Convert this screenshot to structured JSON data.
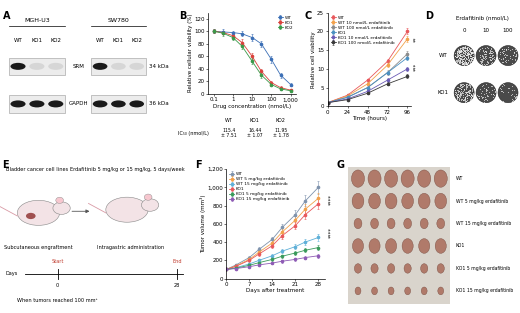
{
  "panel_labels": [
    "A",
    "B",
    "C",
    "D",
    "E",
    "F",
    "G"
  ],
  "western_blot": {
    "blots": [
      {
        "cell_line": "MGH-U3",
        "lanes": [
          "WT",
          "KO1",
          "KO2"
        ]
      },
      {
        "cell_line": "SW780",
        "lanes": [
          "WT",
          "KO1",
          "KO2"
        ]
      }
    ],
    "rows": [
      {
        "protein": "SRM",
        "size": "34 kDa",
        "band": [
          true,
          false,
          false
        ]
      },
      {
        "protein": "GAPDH",
        "size": "36 kDa",
        "band": [
          true,
          true,
          true
        ]
      }
    ]
  },
  "chart_data": [
    {
      "type": "line",
      "x": [
        0.1,
        0.3,
        1,
        3,
        10,
        30,
        100,
        300,
        1000
      ],
      "log": "x",
      "marker": "o",
      "legend": "upper right",
      "x_label": "Drug concentration (nmol/L)",
      "y_label": "Relative cellular viability (%)",
      "xlim": [
        0.05,
        2000
      ],
      "xticks": [
        0.1,
        1,
        10,
        100,
        {
          "value": 1000,
          "label": "1,000"
        }
      ],
      "ylim": [
        0,
        130
      ],
      "yticks": [
        0,
        20,
        40,
        60,
        80,
        100,
        120
      ],
      "series": [
        {
          "name": "WT",
          "color": "#3b6fb6",
          "values": [
            100,
            99,
            98,
            96,
            90,
            80,
            55,
            30,
            15
          ],
          "errors": [
            3,
            4,
            3,
            4,
            5,
            5,
            6,
            4,
            3
          ]
        },
        {
          "name": "KO1",
          "color": "#d9423c",
          "values": [
            100,
            98,
            93,
            82,
            60,
            36,
            18,
            10,
            6
          ],
          "errors": [
            3,
            3,
            4,
            5,
            5,
            4,
            3,
            2,
            2
          ]
        },
        {
          "name": "KO2",
          "color": "#3a9a4a",
          "values": [
            100,
            97,
            90,
            76,
            52,
            30,
            15,
            8,
            5
          ],
          "errors": [
            3,
            4,
            4,
            5,
            5,
            4,
            3,
            2,
            2
          ]
        }
      ]
    },
    {
      "type": "line",
      "x": [
        0,
        24,
        48,
        72,
        96
      ],
      "marker": "o",
      "legend": "upper left",
      "x_label": "Time (hours)",
      "y_label": "Relative cell viability",
      "xlim": [
        0,
        100
      ],
      "xticks": [
        0,
        24,
        48,
        72,
        96
      ],
      "ylim": [
        0,
        25
      ],
      "yticks": [
        0,
        5,
        10,
        15,
        20,
        25
      ],
      "annotations": [
        "**",
        "***"
      ],
      "series": [
        {
          "name": "WT",
          "color": "#e8585c",
          "values": [
            1,
            3,
            7,
            12,
            20
          ],
          "errors": [
            0.05,
            0.2,
            0.4,
            0.6,
            0.8
          ]
        },
        {
          "name": "WT 10 nmol/L erdafitinib",
          "color": "#f2a14b",
          "values": [
            1,
            2.8,
            6,
            11,
            18
          ],
          "errors": [
            0.05,
            0.2,
            0.4,
            0.6,
            0.8
          ]
        },
        {
          "name": "WT 100 nmol/L erdafitinib",
          "color": "#8c8c8c",
          "values": [
            1,
            2.5,
            5,
            9,
            14
          ],
          "errors": [
            0.05,
            0.2,
            0.4,
            0.6,
            0.7
          ]
        },
        {
          "name": "KO1",
          "color": "#4a90c2",
          "values": [
            1,
            2.4,
            5,
            9,
            13
          ],
          "errors": [
            0.05,
            0.2,
            0.3,
            0.5,
            0.7
          ]
        },
        {
          "name": "KO1 10 nmol/L erdafitinib",
          "color": "#6a5bb5",
          "values": [
            1,
            2,
            4,
            7,
            10
          ],
          "errors": [
            0.05,
            0.2,
            0.3,
            0.5,
            0.6
          ]
        },
        {
          "name": "KO1 100 nmol/L erdafitinib",
          "color": "#3a3a3a",
          "values": [
            1,
            1.8,
            3.5,
            6,
            8
          ],
          "errors": [
            0.05,
            0.2,
            0.3,
            0.4,
            0.5
          ]
        }
      ]
    },
    {
      "type": "line",
      "x": [
        0,
        3,
        7,
        10,
        14,
        17,
        21,
        24,
        28
      ],
      "marker": "o",
      "legend": "upper left",
      "x_label": "Days after treatment",
      "y_label": "Tumor volume (mm³)",
      "xlim": [
        0,
        30
      ],
      "xticks": [
        0,
        7,
        14,
        21,
        28
      ],
      "ylim": [
        0,
        1200
      ],
      "yticks": [
        0,
        200,
        400,
        600,
        800,
        {
          "value": 1000,
          "label": "1,000"
        },
        {
          "value": 1200,
          "label": "1,200"
        }
      ],
      "annotations": [
        "****",
        "****"
      ],
      "series": [
        {
          "name": "WT",
          "color": "#7f93ad",
          "values": [
            100,
            150,
            230,
            320,
            430,
            560,
            700,
            850,
            1000
          ],
          "errors": [
            5,
            10,
            20,
            25,
            30,
            40,
            50,
            60,
            70
          ]
        },
        {
          "name": "WT 5 mg/kg erdafitinib",
          "color": "#f2a14b",
          "values": [
            100,
            140,
            210,
            290,
            390,
            510,
            640,
            760,
            880
          ],
          "errors": [
            5,
            10,
            18,
            22,
            28,
            35,
            45,
            55,
            60
          ]
        },
        {
          "name": "WT 15 mg/kg erdafitinib",
          "color": "#5fb0d8",
          "values": [
            100,
            120,
            160,
            200,
            250,
            300,
            350,
            400,
            450
          ],
          "errors": [
            5,
            8,
            12,
            15,
            18,
            22,
            25,
            30,
            35
          ]
        },
        {
          "name": "KO1",
          "color": "#e8585c",
          "values": [
            100,
            135,
            200,
            270,
            360,
            470,
            580,
            700,
            820
          ],
          "errors": [
            5,
            10,
            16,
            20,
            25,
            35,
            40,
            50,
            60
          ]
        },
        {
          "name": "KO1 5 mg/kg erdafitinib",
          "color": "#3a9a5b",
          "values": [
            100,
            115,
            145,
            175,
            210,
            245,
            280,
            310,
            340
          ],
          "errors": [
            5,
            7,
            10,
            12,
            15,
            18,
            20,
            22,
            25
          ]
        },
        {
          "name": "KO1 15 mg/kg erdafitinib",
          "color": "#8e5bb5",
          "values": [
            100,
            110,
            130,
            150,
            170,
            190,
            210,
            230,
            250
          ],
          "errors": [
            5,
            6,
            8,
            10,
            12,
            14,
            15,
            17,
            20
          ]
        }
      ]
    }
  ],
  "ic50_table": {
    "label": "IC₅₀ (nmol/L)",
    "columns": [
      "WT",
      "KO1",
      "KO2"
    ],
    "values": [
      [
        "115.4",
        "± 7.51"
      ],
      [
        "16.44",
        "± 1.07"
      ],
      [
        "11.95",
        "± 1.78"
      ]
    ]
  },
  "colony_assay": {
    "title": "Erdafitinib (nmol/L)",
    "doses": [
      0,
      10,
      100
    ],
    "rows": [
      "WT",
      "KO1"
    ]
  },
  "schematic": {
    "cell_lines": "Bladder cancer cell lines",
    "treatment": "Erdafitinib 5 mg/kg or 15 mg/kg, 5 days/week",
    "engraftment": "Subcutaneous engraftment",
    "administration": "Intragastric administration",
    "timeline": {
      "axis_label": "Days",
      "start": {
        "day": 0,
        "label": "Start",
        "note": "When tumors reached 100 mm³"
      },
      "end": {
        "day": 28,
        "label": "End"
      }
    }
  },
  "tumor_photos": {
    "rows": [
      "WT",
      "WT 5 mg/kg erdafitinib",
      "WT 15 mg/kg erdafitinib",
      "KO1",
      "KO1 5 mg/kg erdafitinib",
      "KO1 15 mg/kg erdafitinib"
    ]
  }
}
